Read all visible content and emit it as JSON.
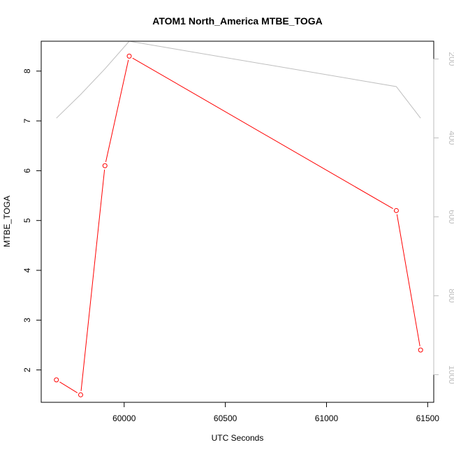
{
  "chart_data": {
    "type": "line",
    "title": "ATOM1 North_America MTBE_TOGA",
    "xlabel": "UTC Seconds",
    "ylabel": "MTBE_TOGA",
    "xlim": [
      59590,
      61530
    ],
    "ylim": [
      1.35,
      8.6
    ],
    "y2lim": [
      1070,
      155
    ],
    "x_ticks": [
      60000,
      60500,
      61000,
      61500
    ],
    "y_ticks": [
      2,
      3,
      4,
      5,
      6,
      7,
      8
    ],
    "y2_ticks": [
      200,
      400,
      600,
      800,
      1000
    ],
    "grid": false,
    "legend": "none",
    "series": [
      {
        "axis": "left",
        "color": "#ff0000",
        "markers": "open-circle",
        "x": [
          59665,
          59785,
          59905,
          60025,
          61345,
          61465
        ],
        "y": [
          1.8,
          1.5,
          6.1,
          8.3,
          5.2,
          2.4
        ]
      },
      {
        "axis": "right",
        "color": "#bebebe",
        "markers": "none",
        "x": [
          59665,
          59785,
          59905,
          60025,
          61345,
          61465
        ],
        "y": [
          350,
          290,
          225,
          155,
          270,
          350
        ]
      }
    ]
  }
}
